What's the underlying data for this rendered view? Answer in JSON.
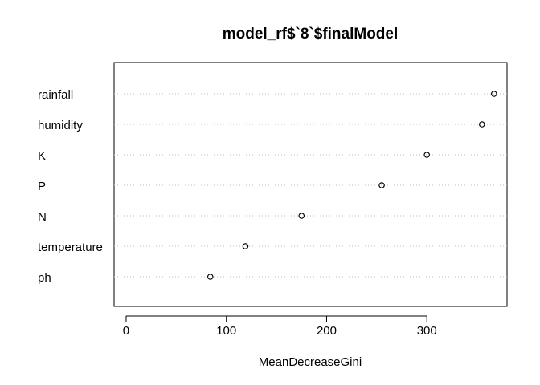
{
  "chart_data": {
    "type": "dotchart",
    "title": "model_rf$`8`$finalModel",
    "xlabel": "MeanDecreaseGini",
    "ylabel": "",
    "categories": [
      "rainfall",
      "humidity",
      "K",
      "P",
      "N",
      "temperature",
      "ph"
    ],
    "values": [
      367,
      355,
      300,
      255,
      175,
      119,
      84
    ],
    "xlim": [
      -12,
      380
    ],
    "xticks": [
      0,
      100,
      200,
      300
    ],
    "grid": "dotted horizontal lines per category",
    "marker": "open circle",
    "colors": {
      "point": "#000000",
      "grid": "#bebebe",
      "frame": "#000000"
    }
  }
}
